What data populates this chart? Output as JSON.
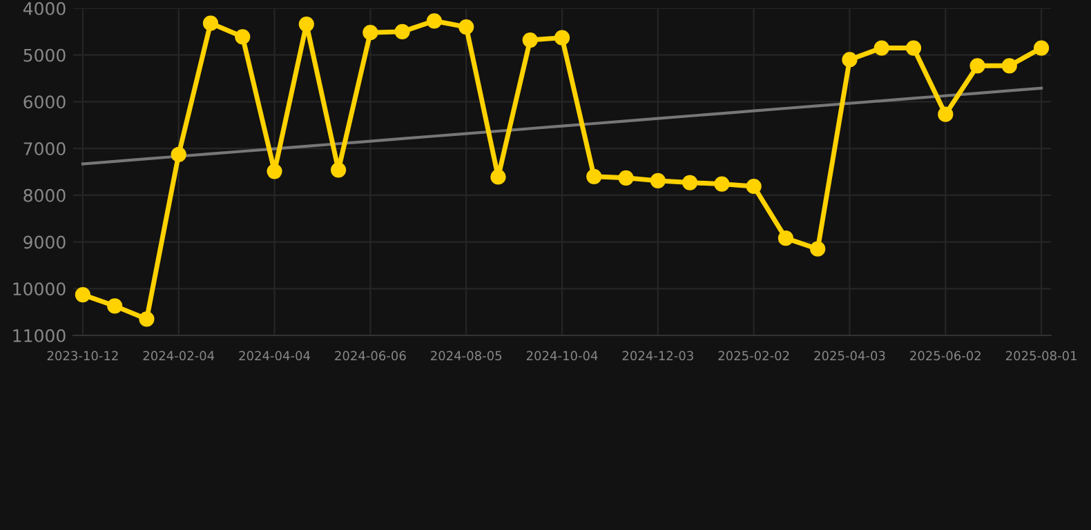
{
  "chart_data": {
    "type": "line",
    "categories": [
      "2023-10-12",
      null,
      null,
      "2024-02-04",
      null,
      null,
      "2024-04-04",
      null,
      null,
      "2024-06-06",
      null,
      null,
      "2024-08-05",
      null,
      null,
      "2024-10-04",
      null,
      null,
      "2024-12-03",
      null,
      null,
      "2025-02-02",
      null,
      null,
      "2025-04-03",
      null,
      null,
      "2025-06-02",
      null,
      null,
      "2025-08-01"
    ],
    "series": [
      {
        "color": "#ffd200",
        "marker": "circle",
        "values": [
          10130,
          10370,
          10650,
          7130,
          4320,
          4610,
          7490,
          4340,
          7460,
          4520,
          4500,
          4270,
          4400,
          7610,
          4680,
          4630,
          7600,
          7630,
          7690,
          7730,
          7760,
          7810,
          8920,
          9150,
          5100,
          4850,
          4850,
          6270,
          5230,
          5230,
          4850
        ]
      },
      {
        "type": "line",
        "color": "#777777",
        "marker": "none",
        "values": [
          7330,
          7276,
          7222,
          7168,
          7114,
          7060,
          7006,
          6952,
          6898,
          6844,
          6790,
          6736,
          6682,
          6628,
          6574,
          6520,
          6466,
          6412,
          6358,
          6304,
          6250,
          6196,
          6142,
          6088,
          6034,
          5980,
          5926,
          5872,
          5818,
          5764,
          5710
        ]
      }
    ],
    "ylim": [
      11000,
      4000
    ],
    "yticks": [
      4000,
      5000,
      6000,
      7000,
      8000,
      9000,
      10000,
      11000
    ],
    "grid": true,
    "line_style": "solid"
  }
}
